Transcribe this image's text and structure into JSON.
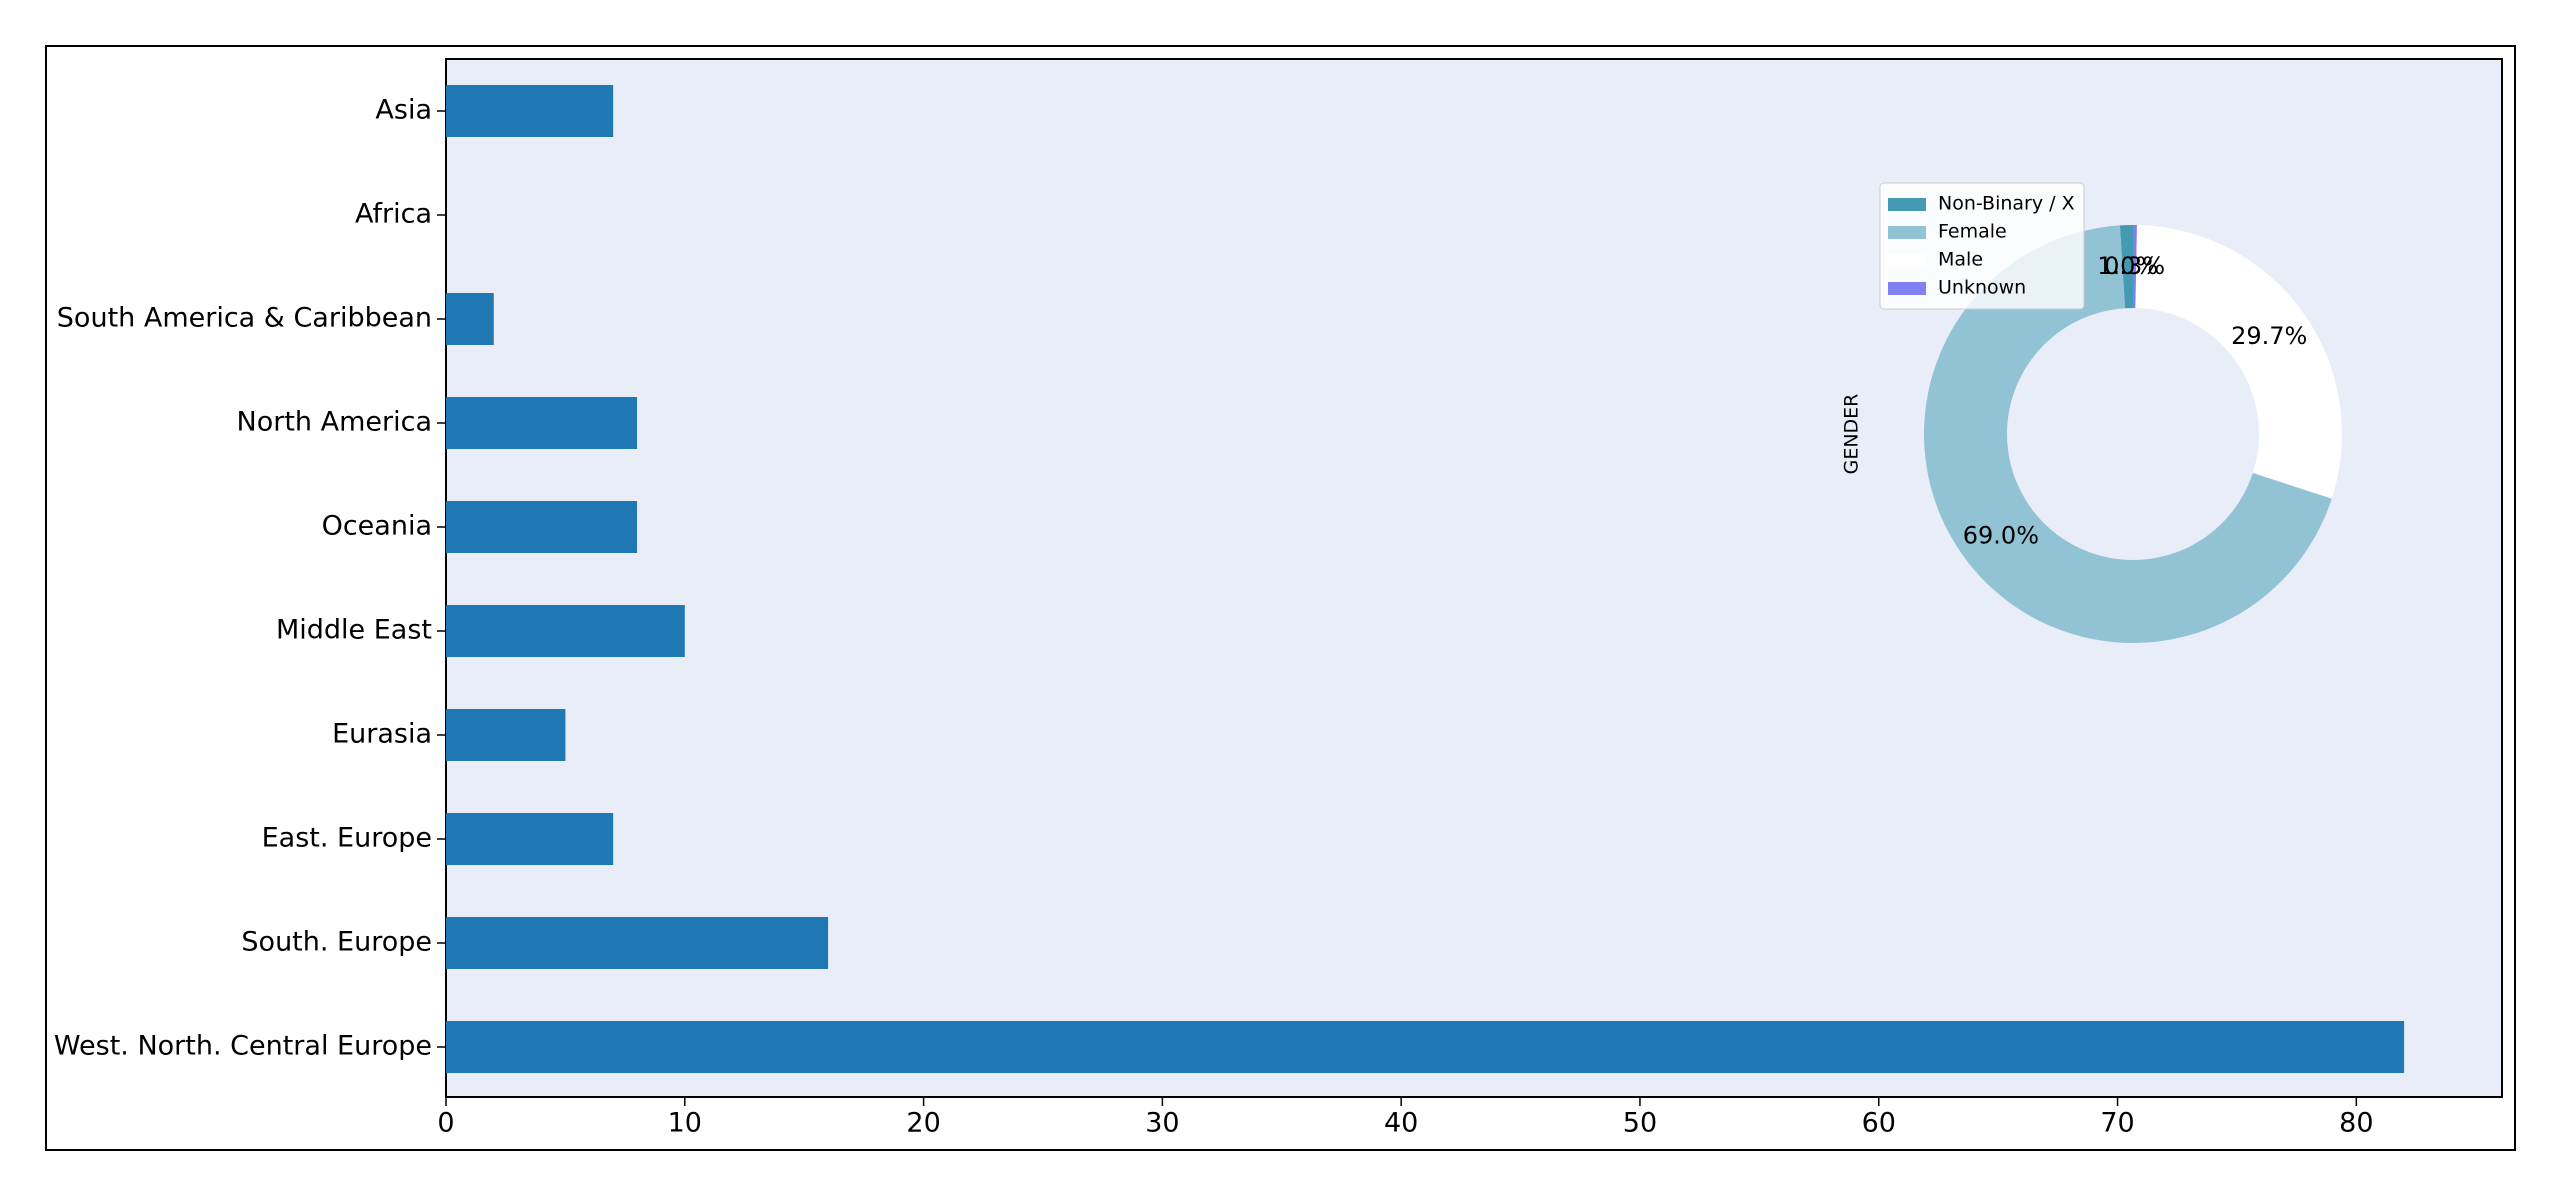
{
  "chart_data": [
    {
      "type": "barh",
      "categories": [
        "Asia",
        "Africa",
        "South America & Caribbean",
        "North America",
        "Oceania",
        "Middle East",
        "Eurasia",
        "East. Europe",
        "South. Europe",
        "West. North. Central Europe"
      ],
      "values": [
        7,
        0,
        2,
        8,
        8,
        10,
        5,
        7,
        16,
        82
      ],
      "color": "#1f77b4",
      "xlim": [
        0,
        86.1
      ],
      "xticks": [
        0,
        10,
        20,
        30,
        40,
        50,
        60,
        70,
        80
      ]
    },
    {
      "type": "donut",
      "ylabel": "GENDER",
      "categories": [
        "Non-Binary / X",
        "Female",
        "Male",
        "Unknown"
      ],
      "values": [
        1.0,
        69.0,
        29.7,
        0.3
      ],
      "value_labels": [
        "1.0%",
        "69.0%",
        "29.7%",
        "0.3%"
      ],
      "colors": [
        "#4499b3",
        "#92c3d4",
        "#ffffff",
        "#8080f0"
      ],
      "start_angle": 90,
      "legend": "upper left"
    }
  ]
}
